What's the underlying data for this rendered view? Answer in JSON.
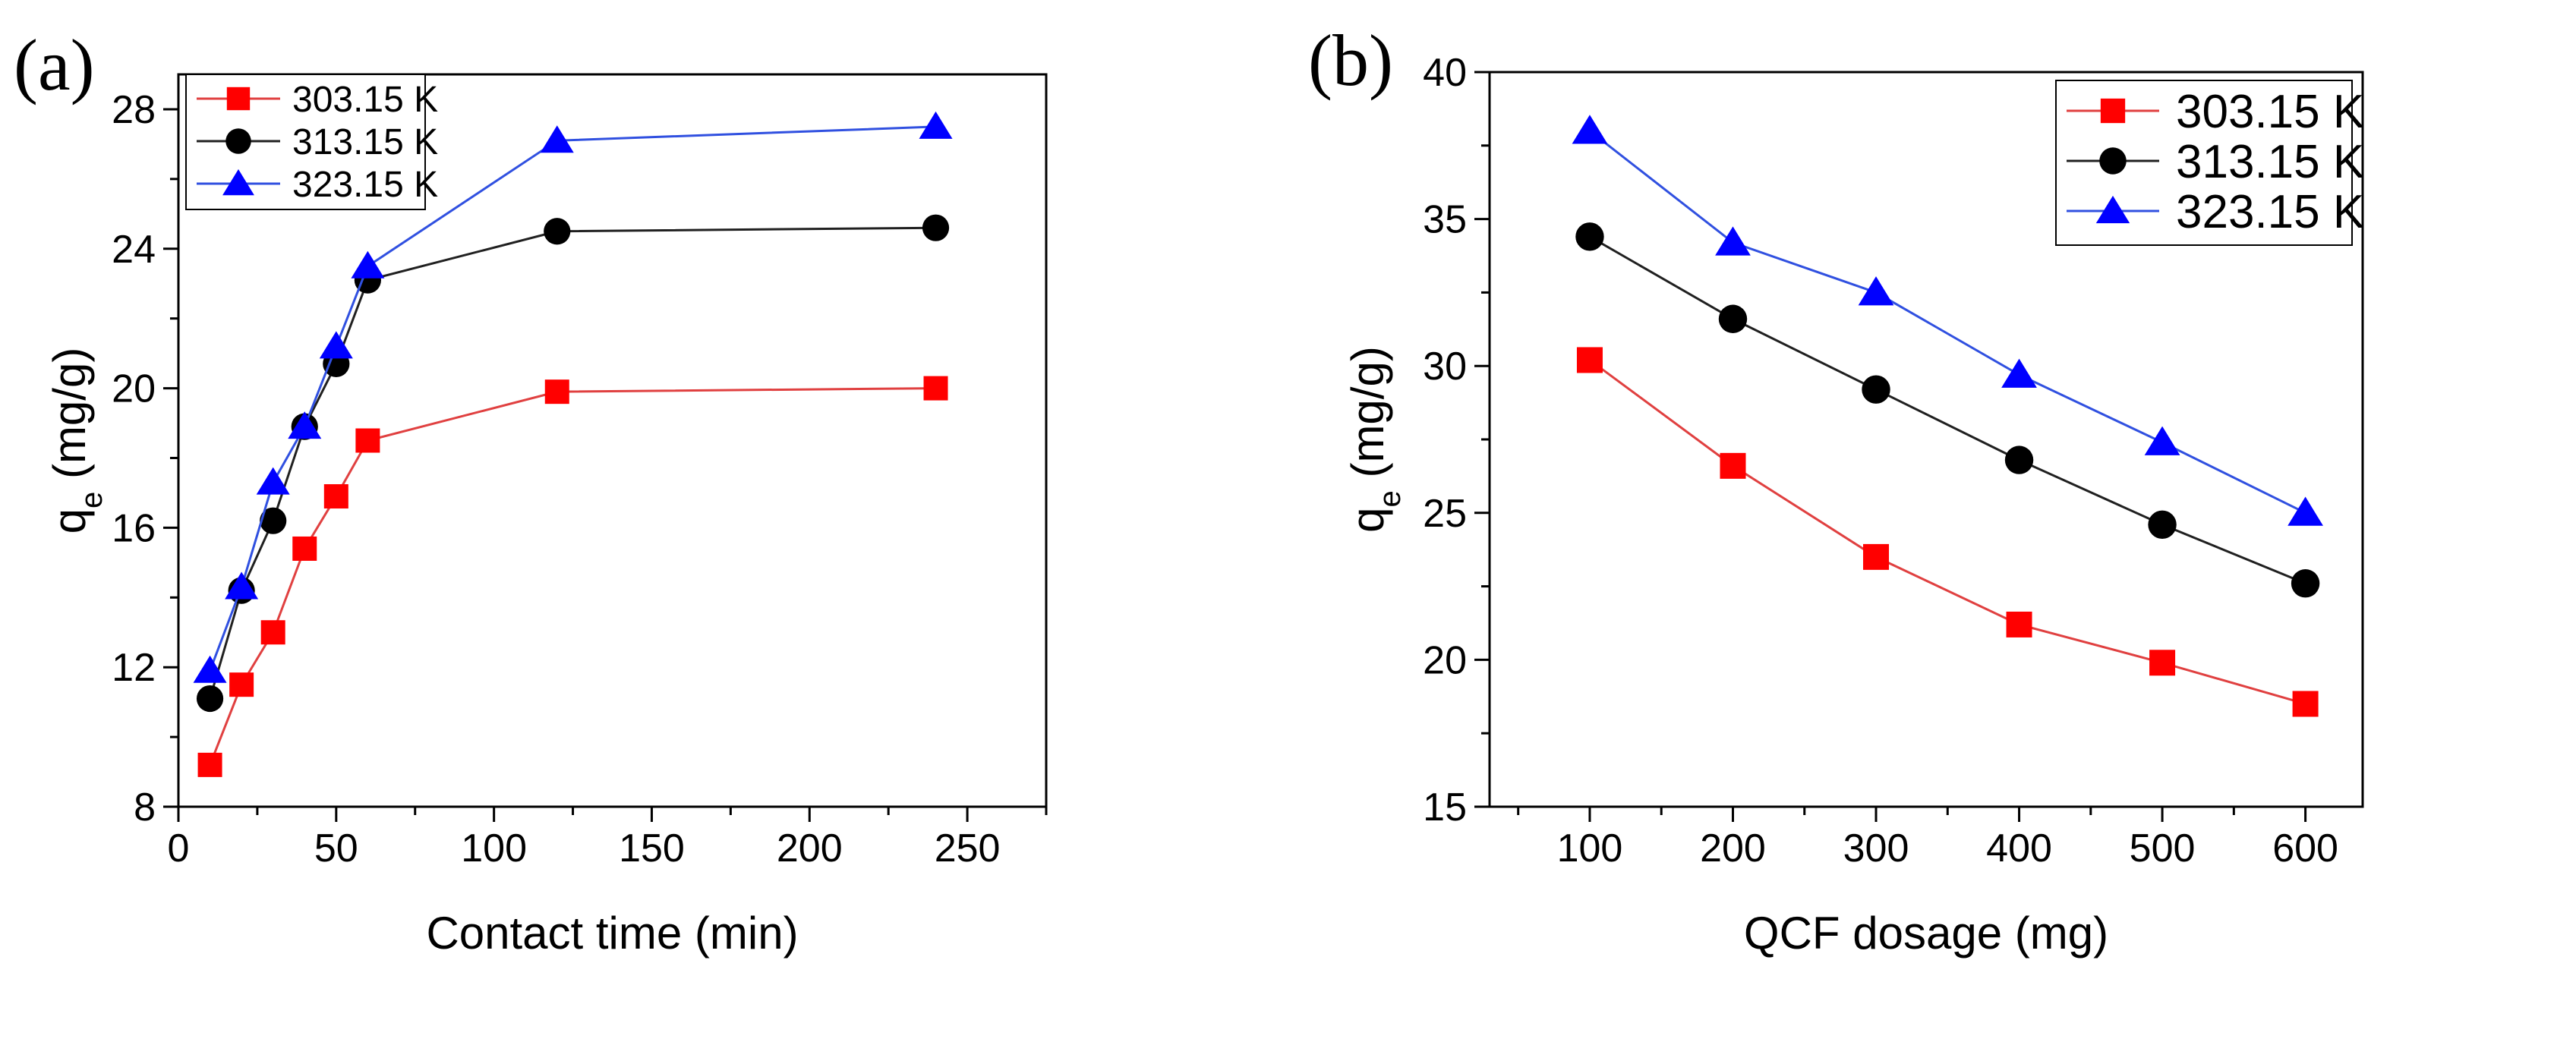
{
  "chart_data": [
    {
      "panel_label": "(a)",
      "type": "line",
      "xlabel": "Contact time (min)",
      "ylabel_main": "q",
      "ylabel_sub": "e",
      "ylabel_unit": " (mg/g)",
      "xlim": [
        0,
        275
      ],
      "ylim": [
        8,
        29
      ],
      "xticks": [
        0,
        50,
        100,
        150,
        200,
        250
      ],
      "yticks": [
        8,
        12,
        16,
        20,
        24,
        28
      ],
      "legend_position": "top-left",
      "series": [
        {
          "name": "303.15 K",
          "color": "#ff0000",
          "line_color": "#e04040",
          "marker": "square",
          "x": [
            10,
            20,
            30,
            40,
            50,
            60,
            120,
            240
          ],
          "y": [
            9.2,
            11.5,
            13.0,
            15.4,
            16.9,
            18.5,
            19.9,
            20.0
          ]
        },
        {
          "name": "313.15 K",
          "color": "#000000",
          "line_color": "#202020",
          "marker": "circle",
          "x": [
            10,
            20,
            30,
            40,
            50,
            60,
            120,
            240
          ],
          "y": [
            11.1,
            14.2,
            16.2,
            18.9,
            20.7,
            23.1,
            24.5,
            24.6
          ]
        },
        {
          "name": "323.15 K",
          "color": "#0000ff",
          "line_color": "#3050e0",
          "marker": "triangle",
          "x": [
            10,
            20,
            30,
            40,
            50,
            60,
            120,
            240
          ],
          "y": [
            11.9,
            14.3,
            17.3,
            18.9,
            21.2,
            23.5,
            27.1,
            27.5
          ]
        }
      ]
    },
    {
      "panel_label": "(b)",
      "type": "line",
      "xlabel": "QCF dosage (mg)",
      "ylabel_main": "q",
      "ylabel_sub": "e",
      "ylabel_unit": " (mg/g)",
      "xlim": [
        30,
        640
      ],
      "ylim": [
        15,
        40
      ],
      "xticks": [
        100,
        200,
        300,
        400,
        500,
        600
      ],
      "yticks": [
        15,
        20,
        25,
        30,
        35,
        40
      ],
      "legend_position": "top-right",
      "series": [
        {
          "name": "303.15 K",
          "color": "#ff0000",
          "line_color": "#e04040",
          "marker": "square",
          "x": [
            100,
            200,
            300,
            400,
            500,
            600
          ],
          "y": [
            30.2,
            26.6,
            23.5,
            21.2,
            19.9,
            18.5
          ]
        },
        {
          "name": "313.15 K",
          "color": "#000000",
          "line_color": "#202020",
          "marker": "circle",
          "x": [
            100,
            200,
            300,
            400,
            500,
            600
          ],
          "y": [
            34.4,
            31.6,
            29.2,
            26.8,
            24.6,
            22.6
          ]
        },
        {
          "name": "323.15 K",
          "color": "#0000ff",
          "line_color": "#3050e0",
          "marker": "triangle",
          "x": [
            100,
            200,
            300,
            400,
            500,
            600
          ],
          "y": [
            38.0,
            34.2,
            32.5,
            29.7,
            27.4,
            25.0
          ]
        }
      ]
    }
  ]
}
